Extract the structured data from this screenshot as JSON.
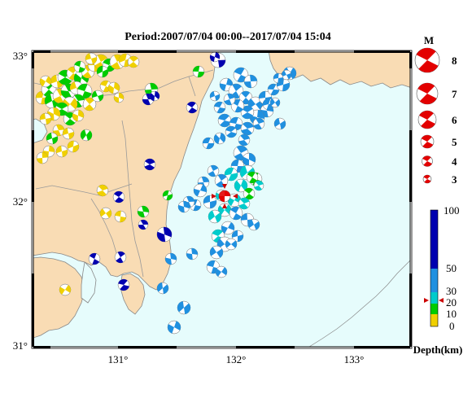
{
  "title": "Period:2007/07/04 00:00--2017/07/04 15:04",
  "axes": {
    "lon_ticks": [
      "131°",
      "132°",
      "133°"
    ],
    "lat_ticks": [
      "33°",
      "32°",
      "31°"
    ]
  },
  "mag_legend": {
    "heading": "M",
    "labels": [
      "8",
      "7",
      "6",
      "5",
      "4",
      "3"
    ],
    "color": "#e30000"
  },
  "depth_legend": {
    "caption": "Depth(km)",
    "labels": [
      "100",
      "50",
      "30",
      "20",
      "10",
      "0"
    ],
    "colors": {
      "shallow": "#f0d000",
      "d10": "#00cc00",
      "d20": "#00cccc",
      "d30": "#2090e0",
      "deep": "#0000b0"
    }
  },
  "colors": {
    "land": "#f9dcb4",
    "sea": "#e6fcfc",
    "coast": "#888888",
    "main_event": "#e30000"
  }
}
